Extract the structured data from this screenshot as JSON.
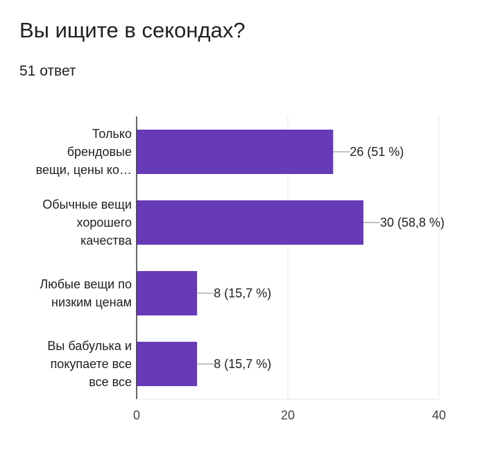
{
  "question": {
    "title": "Вы ищите в секондах?",
    "responses": "51 ответ"
  },
  "colors": {
    "bar": "#673AB7",
    "grid": "#e6e6e6",
    "axis": "#333333",
    "leader": "#9e9e9e"
  },
  "chart_data": {
    "type": "bar",
    "orientation": "horizontal",
    "title": "",
    "xlabel": "",
    "ylabel": "",
    "xlim": [
      0,
      40
    ],
    "xticks": [
      0,
      20,
      40
    ],
    "grid": true,
    "categories": [
      [
        "Только",
        "брендовые",
        "вещи, цены ко…"
      ],
      [
        "Обычные вещи",
        "хорошего",
        "качества"
      ],
      [
        "Любые вещи по",
        "низким ценам"
      ],
      [
        "Вы бабулька и",
        "покупаете все",
        "все все"
      ]
    ],
    "values": [
      26,
      30,
      8,
      8
    ],
    "value_labels": [
      "26 (51 %)",
      "30 (58,8 %)",
      "8 (15,7 %)",
      "8 (15,7 %)"
    ]
  }
}
